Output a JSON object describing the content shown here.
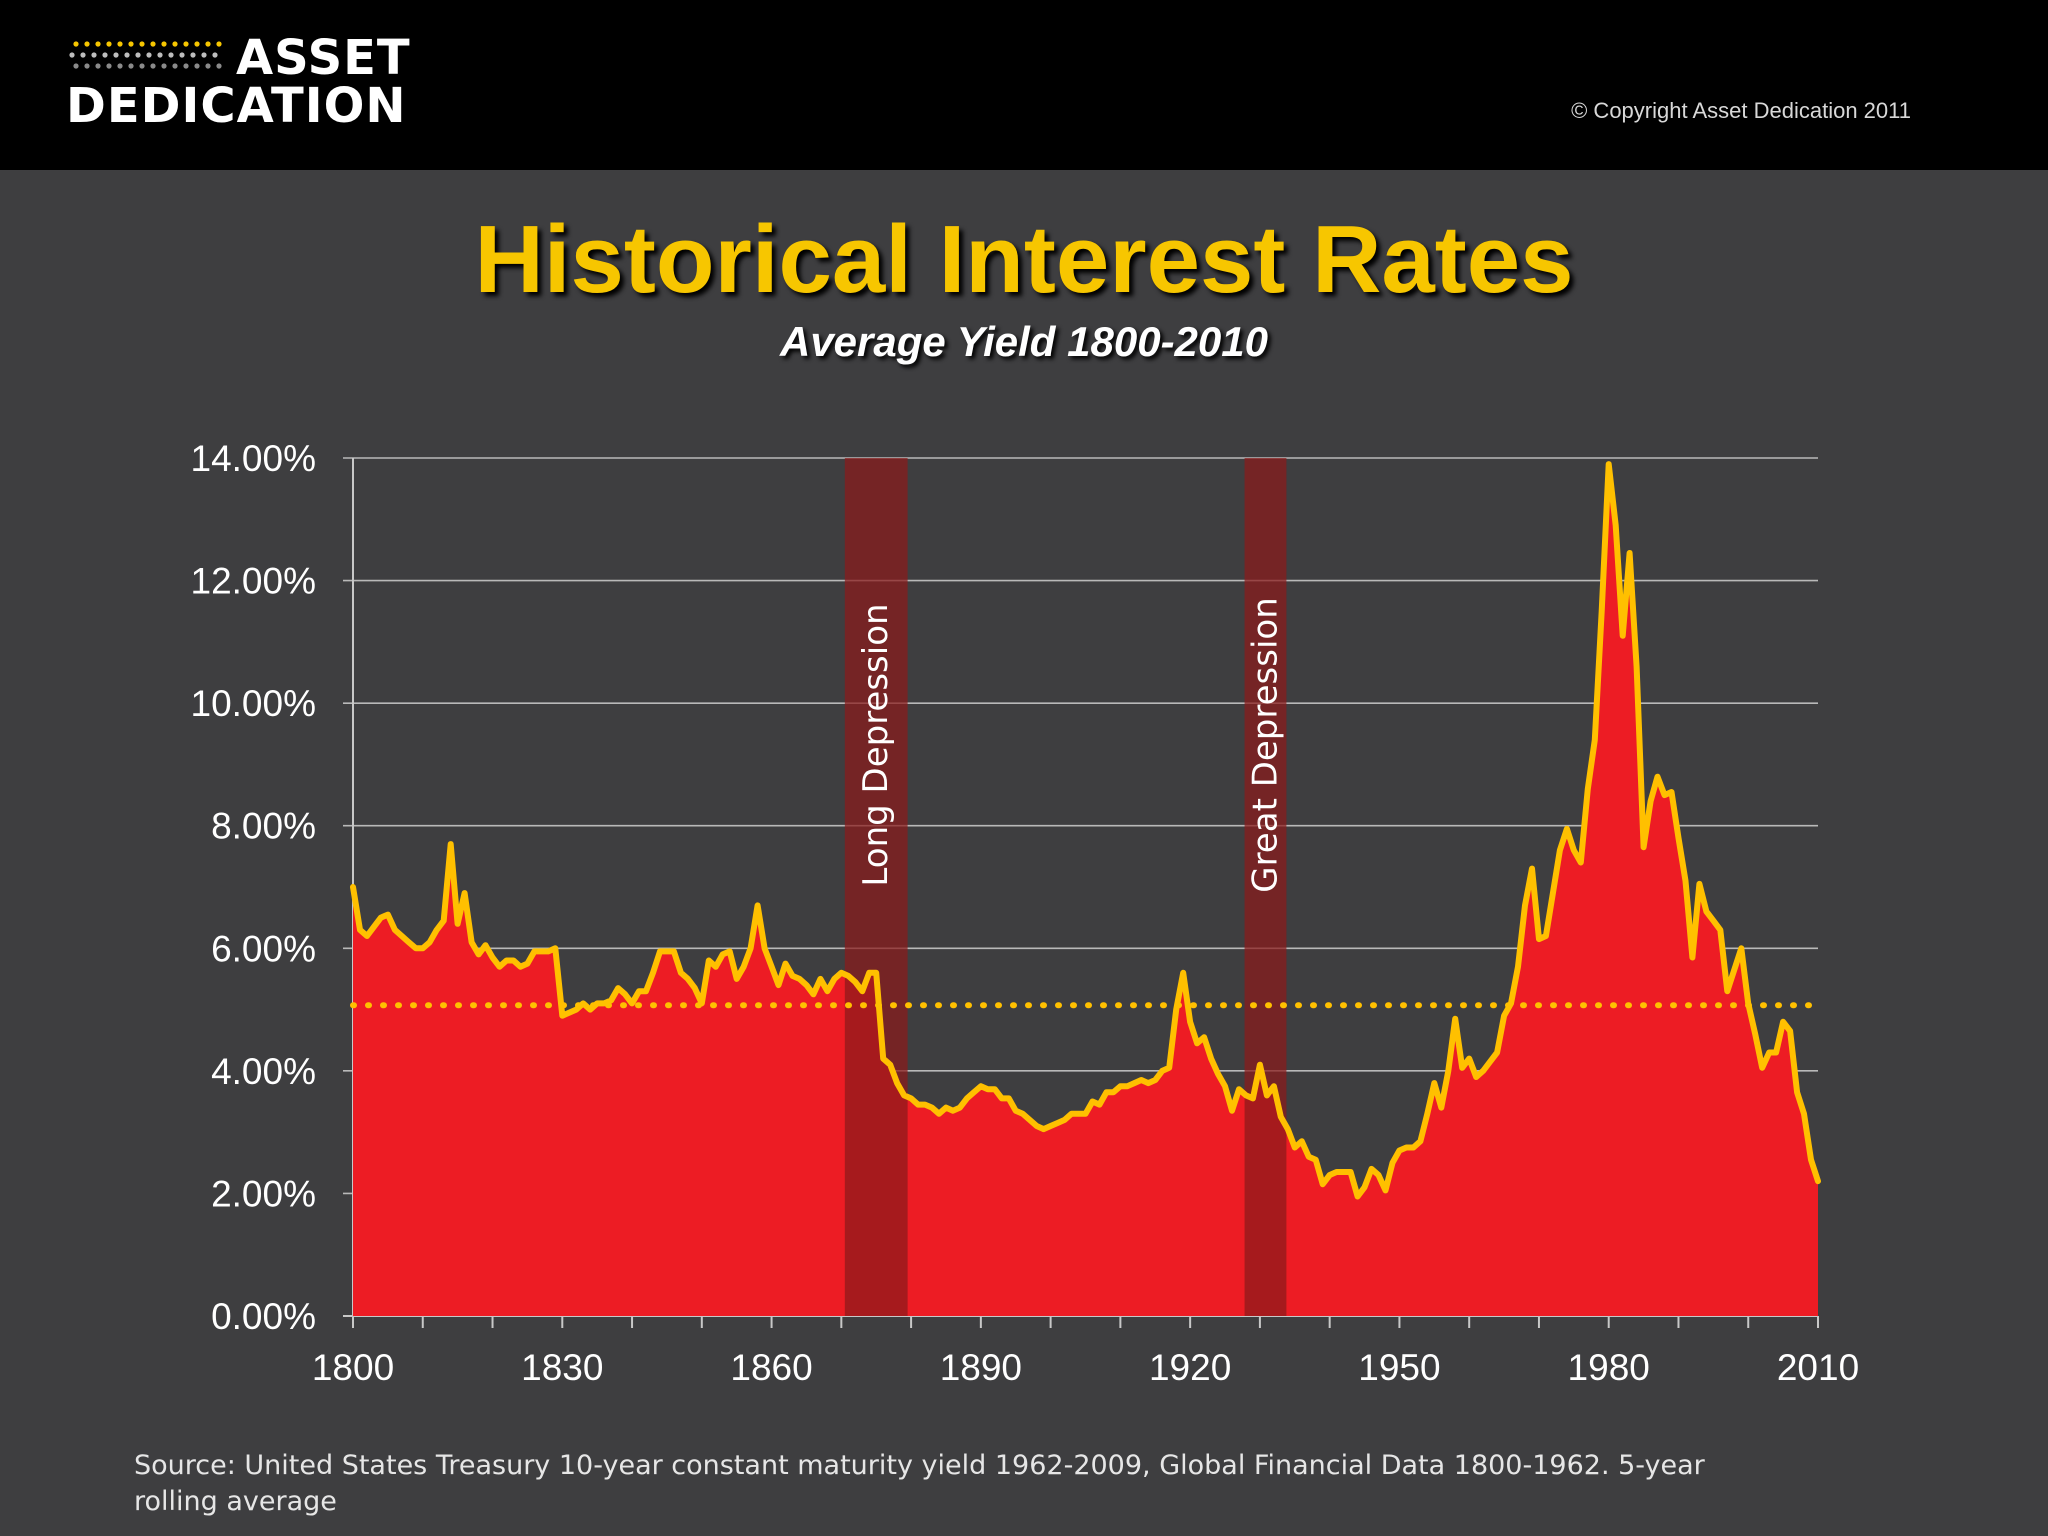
{
  "header": {
    "logo_line1": "ASSET",
    "logo_line2": "DEDICATION",
    "copyright": "© Copyright Asset Dedication 2011"
  },
  "colors": {
    "background": "#3e3e40",
    "title": "#f7c600",
    "area_fill": "#ed1c24",
    "line": "#ffc000",
    "band": "#8b1a1a"
  },
  "chart_data": {
    "type": "area",
    "title": "Historical Interest Rates",
    "subtitle": "Average Yield 1800-2010",
    "y_unit": "%",
    "ylim": [
      0,
      14
    ],
    "y_ticks": [
      "0.00%",
      "2.00%",
      "4.00%",
      "6.00%",
      "8.00%",
      "10.00%",
      "12.00%",
      "14.00%"
    ],
    "xlim": [
      1800,
      2010
    ],
    "x_ticks": [
      "1800",
      "1830",
      "1860",
      "1890",
      "1920",
      "1950",
      "1980",
      "2010"
    ],
    "grid": true,
    "average_line": 5.07,
    "bands": [
      {
        "label": "Long Depression",
        "start": 1870.5,
        "end": 1879.5
      },
      {
        "label": "Great Depression",
        "start": 1927.8,
        "end": 1933.8
      }
    ],
    "series": [
      {
        "values": [
          [
            1800,
            7.0
          ],
          [
            1801,
            6.3
          ],
          [
            1802,
            6.2
          ],
          [
            1803,
            6.35
          ],
          [
            1804,
            6.5
          ],
          [
            1805,
            6.55
          ],
          [
            1806,
            6.3
          ],
          [
            1807,
            6.2
          ],
          [
            1808,
            6.1
          ],
          [
            1809,
            6.0
          ],
          [
            1810,
            6.0
          ],
          [
            1811,
            6.1
          ],
          [
            1812,
            6.3
          ],
          [
            1813,
            6.45
          ],
          [
            1814,
            7.7
          ],
          [
            1815,
            6.4
          ],
          [
            1816,
            6.9
          ],
          [
            1817,
            6.1
          ],
          [
            1818,
            5.9
          ],
          [
            1819,
            6.05
          ],
          [
            1820,
            5.85
          ],
          [
            1821,
            5.7
          ],
          [
            1822,
            5.8
          ],
          [
            1823,
            5.8
          ],
          [
            1824,
            5.7
          ],
          [
            1825,
            5.75
          ],
          [
            1826,
            5.95
          ],
          [
            1827,
            5.95
          ],
          [
            1828,
            5.95
          ],
          [
            1829,
            6.0
          ],
          [
            1830,
            4.9
          ],
          [
            1831,
            4.95
          ],
          [
            1832,
            5.0
          ],
          [
            1833,
            5.1
          ],
          [
            1834,
            5.0
          ],
          [
            1835,
            5.1
          ],
          [
            1836,
            5.1
          ],
          [
            1837,
            5.15
          ],
          [
            1838,
            5.35
          ],
          [
            1839,
            5.25
          ],
          [
            1840,
            5.1
          ],
          [
            1841,
            5.3
          ],
          [
            1842,
            5.3
          ],
          [
            1843,
            5.6
          ],
          [
            1844,
            5.95
          ],
          [
            1845,
            5.95
          ],
          [
            1846,
            5.95
          ],
          [
            1847,
            5.6
          ],
          [
            1848,
            5.5
          ],
          [
            1849,
            5.35
          ],
          [
            1850,
            5.1
          ],
          [
            1851,
            5.8
          ],
          [
            1852,
            5.7
          ],
          [
            1853,
            5.9
          ],
          [
            1854,
            5.95
          ],
          [
            1855,
            5.5
          ],
          [
            1856,
            5.7
          ],
          [
            1857,
            6.0
          ],
          [
            1858,
            6.7
          ],
          [
            1859,
            6.0
          ],
          [
            1860,
            5.7
          ],
          [
            1861,
            5.4
          ],
          [
            1862,
            5.75
          ],
          [
            1863,
            5.55
          ],
          [
            1864,
            5.5
          ],
          [
            1865,
            5.4
          ],
          [
            1866,
            5.25
          ],
          [
            1867,
            5.5
          ],
          [
            1868,
            5.3
          ],
          [
            1869,
            5.5
          ],
          [
            1870,
            5.6
          ],
          [
            1871,
            5.55
          ],
          [
            1872,
            5.45
          ],
          [
            1873,
            5.3
          ],
          [
            1874,
            5.6
          ],
          [
            1875,
            5.6
          ],
          [
            1876,
            4.2
          ],
          [
            1877,
            4.1
          ],
          [
            1878,
            3.8
          ],
          [
            1879,
            3.6
          ],
          [
            1880,
            3.55
          ],
          [
            1881,
            3.45
          ],
          [
            1882,
            3.45
          ],
          [
            1883,
            3.4
          ],
          [
            1884,
            3.3
          ],
          [
            1885,
            3.4
          ],
          [
            1886,
            3.35
          ],
          [
            1887,
            3.4
          ],
          [
            1888,
            3.55
          ],
          [
            1889,
            3.65
          ],
          [
            1890,
            3.75
          ],
          [
            1891,
            3.7
          ],
          [
            1892,
            3.7
          ],
          [
            1893,
            3.55
          ],
          [
            1894,
            3.55
          ],
          [
            1895,
            3.35
          ],
          [
            1896,
            3.3
          ],
          [
            1897,
            3.2
          ],
          [
            1898,
            3.1
          ],
          [
            1899,
            3.05
          ],
          [
            1900,
            3.1
          ],
          [
            1901,
            3.15
          ],
          [
            1902,
            3.2
          ],
          [
            1903,
            3.3
          ],
          [
            1904,
            3.3
          ],
          [
            1905,
            3.3
          ],
          [
            1906,
            3.5
          ],
          [
            1907,
            3.45
          ],
          [
            1908,
            3.65
          ],
          [
            1909,
            3.65
          ],
          [
            1910,
            3.75
          ],
          [
            1911,
            3.75
          ],
          [
            1912,
            3.8
          ],
          [
            1913,
            3.85
          ],
          [
            1914,
            3.8
          ],
          [
            1915,
            3.85
          ],
          [
            1916,
            4.0
          ],
          [
            1917,
            4.05
          ],
          [
            1918,
            5.0
          ],
          [
            1919,
            5.6
          ],
          [
            1920,
            4.8
          ],
          [
            1921,
            4.45
          ],
          [
            1922,
            4.55
          ],
          [
            1923,
            4.2
          ],
          [
            1924,
            3.95
          ],
          [
            1925,
            3.75
          ],
          [
            1926,
            3.35
          ],
          [
            1927,
            3.7
          ],
          [
            1928,
            3.6
          ],
          [
            1929,
            3.55
          ],
          [
            1930,
            4.1
          ],
          [
            1931,
            3.6
          ],
          [
            1932,
            3.75
          ],
          [
            1933,
            3.25
          ],
          [
            1934,
            3.05
          ],
          [
            1935,
            2.75
          ],
          [
            1936,
            2.85
          ],
          [
            1937,
            2.6
          ],
          [
            1938,
            2.55
          ],
          [
            1939,
            2.15
          ],
          [
            1940,
            2.3
          ],
          [
            1941,
            2.35
          ],
          [
            1942,
            2.35
          ],
          [
            1943,
            2.35
          ],
          [
            1944,
            1.95
          ],
          [
            1945,
            2.1
          ],
          [
            1946,
            2.4
          ],
          [
            1947,
            2.3
          ],
          [
            1948,
            2.05
          ],
          [
            1949,
            2.5
          ],
          [
            1950,
            2.7
          ],
          [
            1951,
            2.75
          ],
          [
            1952,
            2.75
          ],
          [
            1953,
            2.85
          ],
          [
            1954,
            3.3
          ],
          [
            1955,
            3.8
          ],
          [
            1956,
            3.4
          ],
          [
            1957,
            4.0
          ],
          [
            1958,
            4.85
          ],
          [
            1959,
            4.05
          ],
          [
            1960,
            4.2
          ],
          [
            1961,
            3.9
          ],
          [
            1962,
            4.0
          ],
          [
            1963,
            4.15
          ],
          [
            1964,
            4.3
          ],
          [
            1965,
            4.9
          ],
          [
            1966,
            5.1
          ],
          [
            1967,
            5.7
          ],
          [
            1968,
            6.7
          ],
          [
            1969,
            7.3
          ],
          [
            1970,
            6.15
          ],
          [
            1971,
            6.2
          ],
          [
            1972,
            6.9
          ],
          [
            1973,
            7.6
          ],
          [
            1974,
            7.95
          ],
          [
            1975,
            7.6
          ],
          [
            1976,
            7.4
          ],
          [
            1977,
            8.6
          ],
          [
            1978,
            9.4
          ],
          [
            1979,
            11.5
          ],
          [
            1980,
            13.9
          ],
          [
            1981,
            12.9
          ],
          [
            1982,
            11.1
          ],
          [
            1983,
            12.45
          ],
          [
            1984,
            10.6
          ],
          [
            1985,
            7.65
          ],
          [
            1986,
            8.4
          ],
          [
            1987,
            8.8
          ],
          [
            1988,
            8.5
          ],
          [
            1989,
            8.55
          ],
          [
            1990,
            7.8
          ],
          [
            1991,
            7.1
          ],
          [
            1992,
            5.85
          ],
          [
            1993,
            7.05
          ],
          [
            1994,
            6.6
          ],
          [
            1995,
            6.45
          ],
          [
            1996,
            6.3
          ],
          [
            1997,
            5.3
          ],
          [
            1998,
            5.65
          ],
          [
            1999,
            6.0
          ],
          [
            2000,
            5.1
          ],
          [
            2001,
            4.6
          ],
          [
            2002,
            4.05
          ],
          [
            2003,
            4.3
          ],
          [
            2004,
            4.3
          ],
          [
            2005,
            4.8
          ],
          [
            2006,
            4.65
          ],
          [
            2007,
            3.65
          ],
          [
            2008,
            3.3
          ],
          [
            2009,
            2.55
          ]
        ]
      }
    ]
  },
  "footer": {
    "source_line1": "Source: United States Treasury 10-year constant maturity yield 1962-2009, Global Financial Data 1800-1962.  5-year",
    "source_line2": "rolling average"
  }
}
